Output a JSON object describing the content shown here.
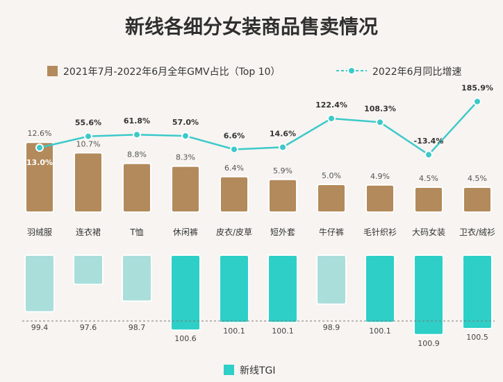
{
  "title": "新线各细分女装商品售卖情况",
  "legend": {
    "gmv_label": "2021年7月-2022年6月全年GMV占比（Top 10）",
    "growth_label": "2022年6月同比增速",
    "tgi_label": "新线TGI"
  },
  "colors": {
    "gmv_bar": "#b38a5c",
    "gmv_bar_edge": "#ffffff",
    "growth_line": "#3cc9c9",
    "tgi_high": "#2ecfc6",
    "tgi_low": "#a9dedb",
    "baseline": "#777777"
  },
  "chart_data": [
    {
      "type": "bar",
      "title": "新线各细分女装商品售卖情况",
      "categories": [
        "羽绒服",
        "连衣裙",
        "T恤",
        "休闲裤",
        "皮衣/皮草",
        "短外套",
        "牛仔裤",
        "毛针织衫",
        "大码女装",
        "卫衣/绒衫"
      ],
      "series": [
        {
          "name": "2021年7月-2022年6月全年GMV占比（Top 10）",
          "type": "bar",
          "values": [
            12.6,
            10.7,
            8.8,
            8.3,
            6.4,
            5.9,
            5.0,
            4.9,
            4.5,
            4.5
          ],
          "labels": [
            "12.6%",
            "10.7%",
            "8.8%",
            "8.3%",
            "6.4%",
            "5.9%",
            "5.0%",
            "4.9%",
            "4.5%",
            "4.5%"
          ]
        },
        {
          "name": "2022年6月同比增速",
          "type": "line",
          "values": [
            13.0,
            55.6,
            61.8,
            57.0,
            6.6,
            14.6,
            122.4,
            108.3,
            -13.4,
            185.9
          ],
          "labels": [
            "13.0%",
            "55.6%",
            "61.8%",
            "57.0%",
            "6.6%",
            "14.6%",
            "122.4%",
            "108.3%",
            "-13.4%",
            "185.9%"
          ]
        }
      ],
      "legend_position": "top",
      "grid": false
    },
    {
      "type": "bar",
      "categories": [
        "羽绒服",
        "连衣裙",
        "T恤",
        "休闲裤",
        "皮衣/皮草",
        "短外套",
        "牛仔裤",
        "毛针织衫",
        "大码女装",
        "卫衣/绒衫"
      ],
      "series": [
        {
          "name": "新线TGI",
          "values": [
            99.4,
            97.6,
            98.7,
            100.6,
            100.1,
            100.1,
            98.9,
            100.1,
            100.9,
            100.5
          ],
          "labels": [
            "99.4",
            "97.6",
            "98.7",
            "100.6",
            "100.1",
            "100.1",
            "98.9",
            "100.1",
            "100.9",
            "100.5"
          ]
        }
      ],
      "baseline": 100,
      "legend_position": "bottom",
      "grid": false
    }
  ]
}
